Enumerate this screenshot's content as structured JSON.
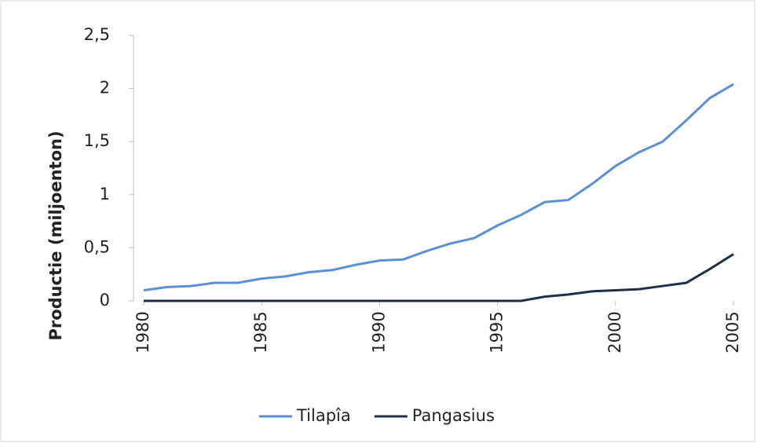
{
  "chart_data": {
    "type": "line",
    "y_label": "Productie (miljoenton)",
    "x": [
      1980,
      1981,
      1982,
      1983,
      1984,
      1985,
      1986,
      1987,
      1988,
      1989,
      1990,
      1991,
      1992,
      1993,
      1994,
      1995,
      1996,
      1997,
      1998,
      1999,
      2000,
      2001,
      2002,
      2003,
      2004,
      2005
    ],
    "series": [
      {
        "name": "Tilapîa",
        "color": "#5b8fd6",
        "values": [
          0.1,
          0.13,
          0.14,
          0.17,
          0.17,
          0.21,
          0.23,
          0.27,
          0.29,
          0.34,
          0.38,
          0.39,
          0.47,
          0.54,
          0.59,
          0.71,
          0.81,
          0.93,
          0.95,
          1.1,
          1.27,
          1.4,
          1.5,
          1.7,
          1.91,
          2.04
        ]
      },
      {
        "name": "Pangasius",
        "color": "#1f2f4a",
        "values": [
          0,
          0,
          0,
          0,
          0,
          0,
          0,
          0,
          0,
          0,
          0,
          0,
          0,
          0,
          0,
          0,
          0,
          0.04,
          0.06,
          0.09,
          0.1,
          0.11,
          0.14,
          0.17,
          0.3,
          0.44
        ]
      }
    ],
    "xlim": [
      1980,
      2005
    ],
    "xticks": [
      1980,
      1985,
      1990,
      1995,
      2000,
      2005
    ],
    "ylim": [
      0,
      2.5
    ],
    "yticks": [
      0,
      {
        "value": 0.5,
        "label": "0,5"
      },
      1,
      {
        "value": 1.5,
        "label": "1,5"
      },
      2,
      {
        "value": 2.5,
        "label": "2,5"
      }
    ],
    "legend": "bottom"
  }
}
